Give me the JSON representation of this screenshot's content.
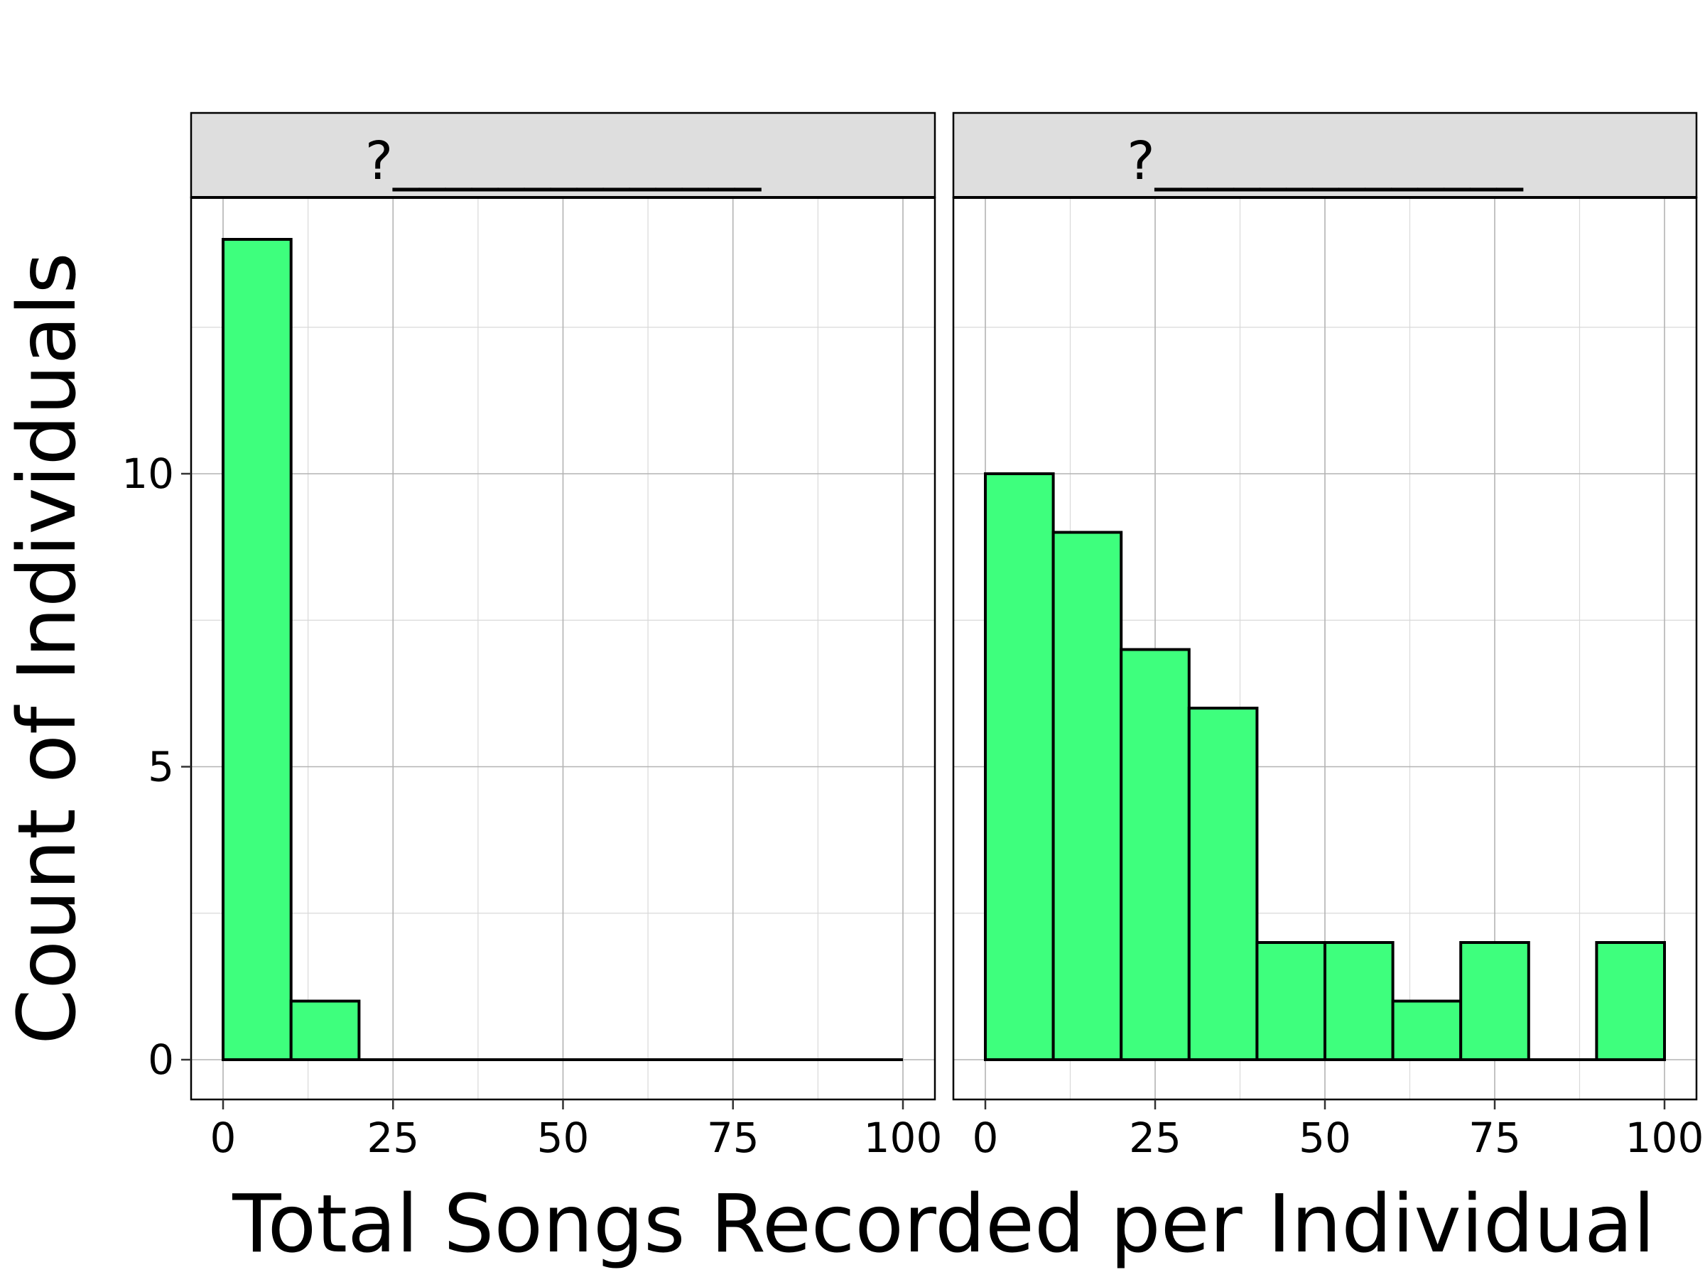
{
  "chart_data": {
    "type": "bar",
    "subtype": "faceted-histogram",
    "xlabel": "Total Songs Recorded per Individual",
    "ylabel": "Count of Individuals",
    "xlim": [
      0,
      100
    ],
    "ylim": [
      0,
      14
    ],
    "x_ticks": [
      0,
      25,
      50,
      75,
      100
    ],
    "y_ticks": [
      0,
      5,
      10
    ],
    "bin_width": 10,
    "bar_color": "#3EFF7D",
    "bar_outline": "#000000",
    "strip_color": "#DEDEDE",
    "grid": true,
    "facets": [
      {
        "label": "?______________",
        "bins": [
          0,
          10,
          20,
          30,
          40,
          50,
          60,
          70,
          80,
          90
        ],
        "counts": [
          14,
          1,
          0,
          0,
          0,
          0,
          0,
          0,
          0,
          0
        ]
      },
      {
        "label": "?______________",
        "bins": [
          0,
          10,
          20,
          30,
          40,
          50,
          60,
          70,
          80,
          90
        ],
        "counts": [
          10,
          9,
          7,
          6,
          2,
          2,
          1,
          2,
          0,
          2
        ]
      }
    ]
  }
}
